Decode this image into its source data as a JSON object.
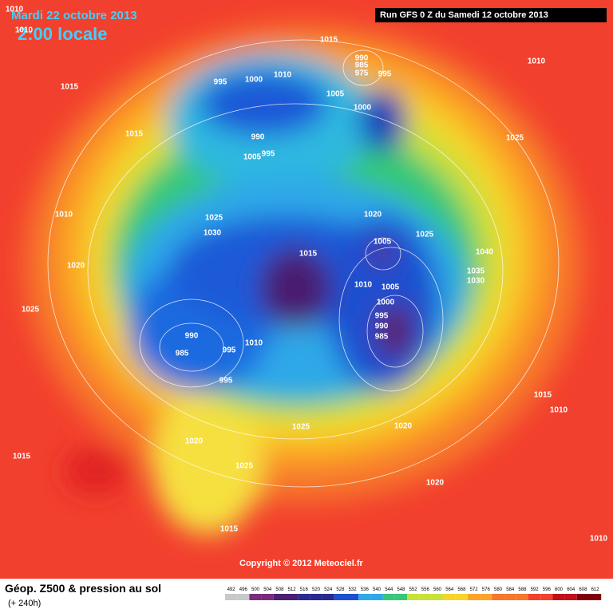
{
  "header": {
    "date": "Mardi 22 octobre 2013",
    "time": "2:00 locale",
    "run": "Run GFS 0 Z du Samedi 12 octobre 2013"
  },
  "footer": {
    "copyright": "Copyright © 2012 Meteociel.fr",
    "title": "Géop. Z500 & pression au sol",
    "lead": "(+ 240h)"
  },
  "map": {
    "pressure_labels": [
      "1010",
      "1010",
      "1015",
      "990",
      "985",
      "975",
      "995",
      "1010",
      "995",
      "1000",
      "1010",
      "1005",
      "1000",
      "1015",
      "1015",
      "990",
      "995",
      "1005",
      "1025",
      "1010",
      "1025",
      "1030",
      "1020",
      "1025",
      "1005",
      "1015",
      "1040",
      "1035",
      "1030",
      "1020",
      "1010",
      "1005",
      "1000",
      "995",
      "990",
      "985",
      "1025",
      "990",
      "985",
      "995",
      "1010",
      "995",
      "1015",
      "1010",
      "1025",
      "1020",
      "1020",
      "1015",
      "1025",
      "1020",
      "1015",
      "1010"
    ]
  },
  "legend": {
    "levels": [
      492,
      496,
      500,
      504,
      508,
      512,
      516,
      520,
      524,
      528,
      532,
      536,
      540,
      544,
      548,
      552,
      556,
      560,
      564,
      568,
      572,
      576,
      580,
      584,
      588,
      592,
      596,
      600,
      604,
      608,
      612
    ]
  }
}
